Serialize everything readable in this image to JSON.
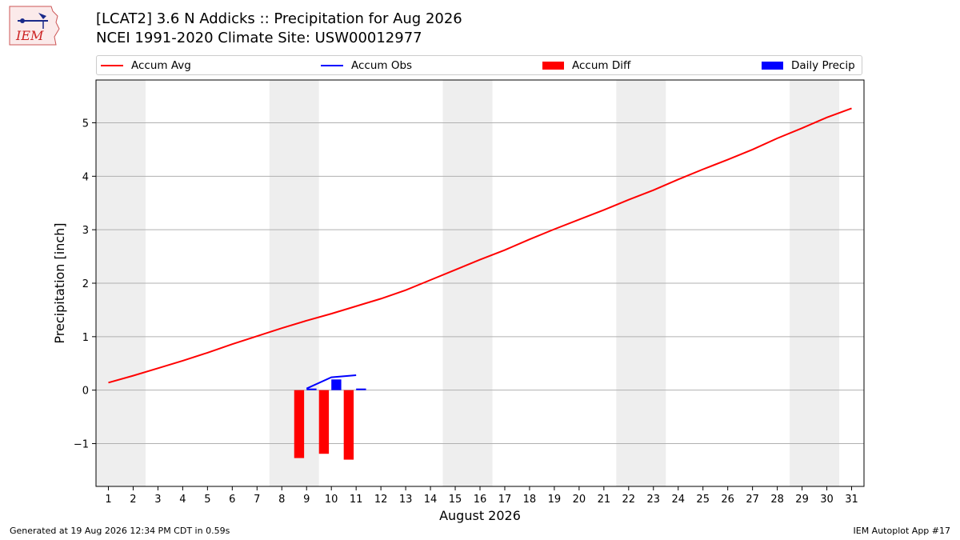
{
  "header": {
    "title_line1": "[LCAT2] 3.6 N Addicks :: Precipitation for Aug 2026",
    "title_line2": "NCEI 1991-2020 Climate Site: USW00012977"
  },
  "logo": {
    "text": "IEM",
    "icon": "iem-logo-icon"
  },
  "footer": {
    "left": "Generated at 19 Aug 2026 12:34 PM CDT in 0.59s",
    "right": "IEM Autoplot App #17"
  },
  "colors": {
    "accum_avg": "#ff0000",
    "accum_obs": "#0000ff",
    "accum_diff": "#ff0000",
    "daily_precip": "#0000ff",
    "weekend_band": "#eeeeee",
    "grid": "#b0b0b0"
  },
  "chart_data": {
    "type": "line",
    "title": "[LCAT2] 3.6 N Addicks :: Precipitation for Aug 2026",
    "subtitle": "NCEI 1991-2020 Climate Site: USW00012977",
    "xlabel": "August 2026",
    "ylabel": "Precipitation [inch]",
    "xlim": [
      0.5,
      31.5
    ],
    "ylim": [
      -1.8,
      5.8
    ],
    "x_ticks": [
      1,
      2,
      3,
      4,
      5,
      6,
      7,
      8,
      9,
      10,
      11,
      12,
      13,
      14,
      15,
      16,
      17,
      18,
      19,
      20,
      21,
      22,
      23,
      24,
      25,
      26,
      27,
      28,
      29,
      30,
      31
    ],
    "y_ticks": [
      -1,
      0,
      1,
      2,
      3,
      4,
      5
    ],
    "y_tick_labels": [
      "−1",
      "0",
      "1",
      "2",
      "3",
      "4",
      "5"
    ],
    "grid": "horizontal",
    "legend_position": "top",
    "shaded_weekends": [
      [
        1,
        2
      ],
      [
        8,
        9
      ],
      [
        15,
        16
      ],
      [
        22,
        23
      ],
      [
        29,
        30
      ]
    ],
    "legend": [
      "Accum Avg",
      "Accum Obs",
      "Accum Diff",
      "Daily Precip"
    ],
    "series": [
      {
        "name": "Accum Avg",
        "type": "line",
        "x": [
          1,
          2,
          3,
          4,
          5,
          6,
          7,
          8,
          9,
          10,
          11,
          12,
          13,
          14,
          15,
          16,
          17,
          18,
          19,
          20,
          21,
          22,
          23,
          24,
          25,
          26,
          27,
          28,
          29,
          30,
          31
        ],
        "values": [
          0.14,
          0.27,
          0.41,
          0.55,
          0.7,
          0.86,
          1.01,
          1.16,
          1.3,
          1.43,
          1.57,
          1.71,
          1.87,
          2.06,
          2.25,
          2.44,
          2.62,
          2.82,
          3.01,
          3.19,
          3.37,
          3.56,
          3.74,
          3.94,
          4.13,
          4.31,
          4.5,
          4.71,
          4.9,
          5.1,
          5.27
        ]
      },
      {
        "name": "Accum Obs",
        "type": "line",
        "x": [
          9,
          10,
          11
        ],
        "values": [
          0.03,
          0.24,
          0.28
        ]
      },
      {
        "name": "Accum Diff",
        "type": "bar",
        "x": [
          9,
          10,
          11
        ],
        "values": [
          -1.27,
          -1.19,
          -1.3
        ]
      },
      {
        "name": "Daily Precip",
        "type": "bar",
        "x": [
          9,
          10,
          11
        ],
        "values": [
          0.03,
          0.2,
          0.03
        ]
      }
    ]
  }
}
